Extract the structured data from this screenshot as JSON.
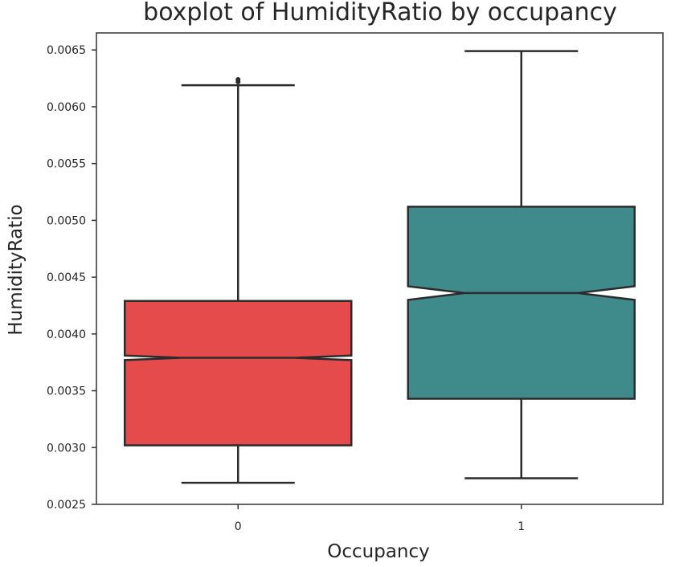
{
  "chart_data": {
    "type": "boxplot",
    "title": "boxplot of HumidityRatio by occupancy",
    "xlabel": "Occupancy",
    "ylabel": "HumidityRatio",
    "categories": [
      "0",
      "1"
    ],
    "ylim": [
      0.0025,
      0.00665
    ],
    "yticks": [
      "0.0025",
      "0.0030",
      "0.0035",
      "0.0040",
      "0.0045",
      "0.0050",
      "0.0055",
      "0.0060",
      "0.0065"
    ],
    "notched": true,
    "boxes": [
      {
        "category": "0",
        "whisker_low": 0.00269,
        "q1": 0.00302,
        "median": 0.00379,
        "q3": 0.00429,
        "whisker_high": 0.00619,
        "notch_low": 0.00377,
        "notch_high": 0.00381,
        "outliers": [
          0.00622,
          0.00624
        ],
        "color": "#e64b4b"
      },
      {
        "category": "1",
        "whisker_low": 0.00273,
        "q1": 0.00343,
        "median": 0.00436,
        "q3": 0.00512,
        "whisker_high": 0.00649,
        "notch_low": 0.0043,
        "notch_high": 0.00442,
        "outliers": [],
        "color": "#3f8b8b"
      }
    ],
    "grid": false,
    "legend": "none"
  }
}
